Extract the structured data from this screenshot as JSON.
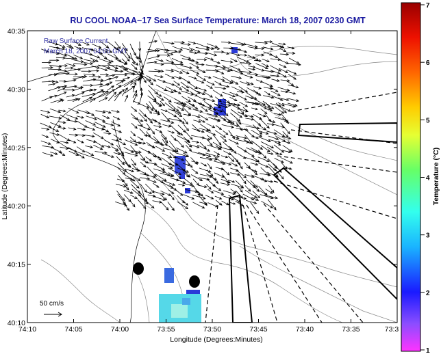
{
  "title": "RU COOL  NOAA−17  Sea Surface Temperature:  March 18, 2007 0230 GMT",
  "inset": {
    "line1": "Raw Surface Current",
    "line2": "March 18, 2007 04:00 GMT"
  },
  "scale_label": "50 cm/s",
  "axes": {
    "xlabel": "Longitude (Degrees:Minutes)",
    "ylabel": "Latitude (Degrees:Minutes)",
    "xticks": [
      "74:10",
      "74:05",
      "74:00",
      "73:55",
      "73:50",
      "73:45",
      "73:40",
      "73:35",
      "73:3"
    ],
    "yticks": [
      "40:35",
      "40:30",
      "40:25",
      "40:20",
      "40:15",
      "40:10"
    ]
  },
  "colorbar": {
    "label": "Temperature (°C)",
    "ticks": [
      "7",
      "6",
      "5",
      "4",
      "3",
      "2",
      "1"
    ],
    "range": [
      1,
      7
    ]
  },
  "colors": {
    "title": "#1a1aa0",
    "inset_text": "#2a2aa0",
    "frame": "#000000",
    "sst_blue": "#2a3ad8",
    "sst_cyan": "#55d8e8"
  }
}
